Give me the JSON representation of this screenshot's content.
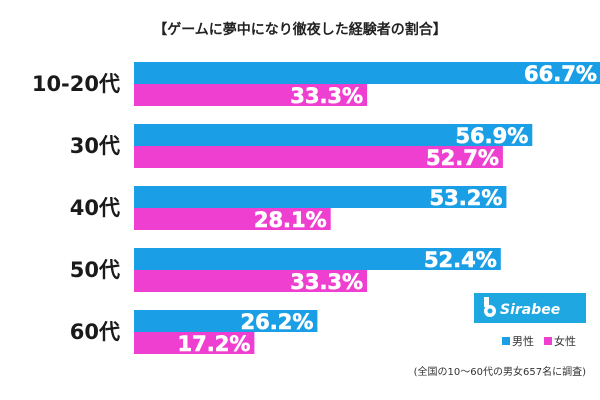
{
  "chart_data": {
    "type": "bar",
    "orientation": "horizontal",
    "title": "【ゲームに夢中になり徹夜した経験者の割合】",
    "categories": [
      "10-20代",
      "30代",
      "40代",
      "50代",
      "60代"
    ],
    "series": [
      {
        "name": "男性",
        "color": "#1a9fe6",
        "values": [
          66.7,
          56.9,
          53.2,
          52.4,
          26.2
        ]
      },
      {
        "name": "女性",
        "color": "#ef3fd0",
        "values": [
          33.3,
          52.7,
          28.1,
          33.3,
          17.2
        ]
      }
    ],
    "value_format": "{v}%",
    "xlim": [
      0,
      80
    ],
    "grid": false,
    "legend": "bottom-right",
    "note": "(全国の10～60代の男女657名に調査)"
  },
  "brand": {
    "name": "Sirabee",
    "icon": "sirabee-logo-icon",
    "color": "#1ea7e1"
  }
}
